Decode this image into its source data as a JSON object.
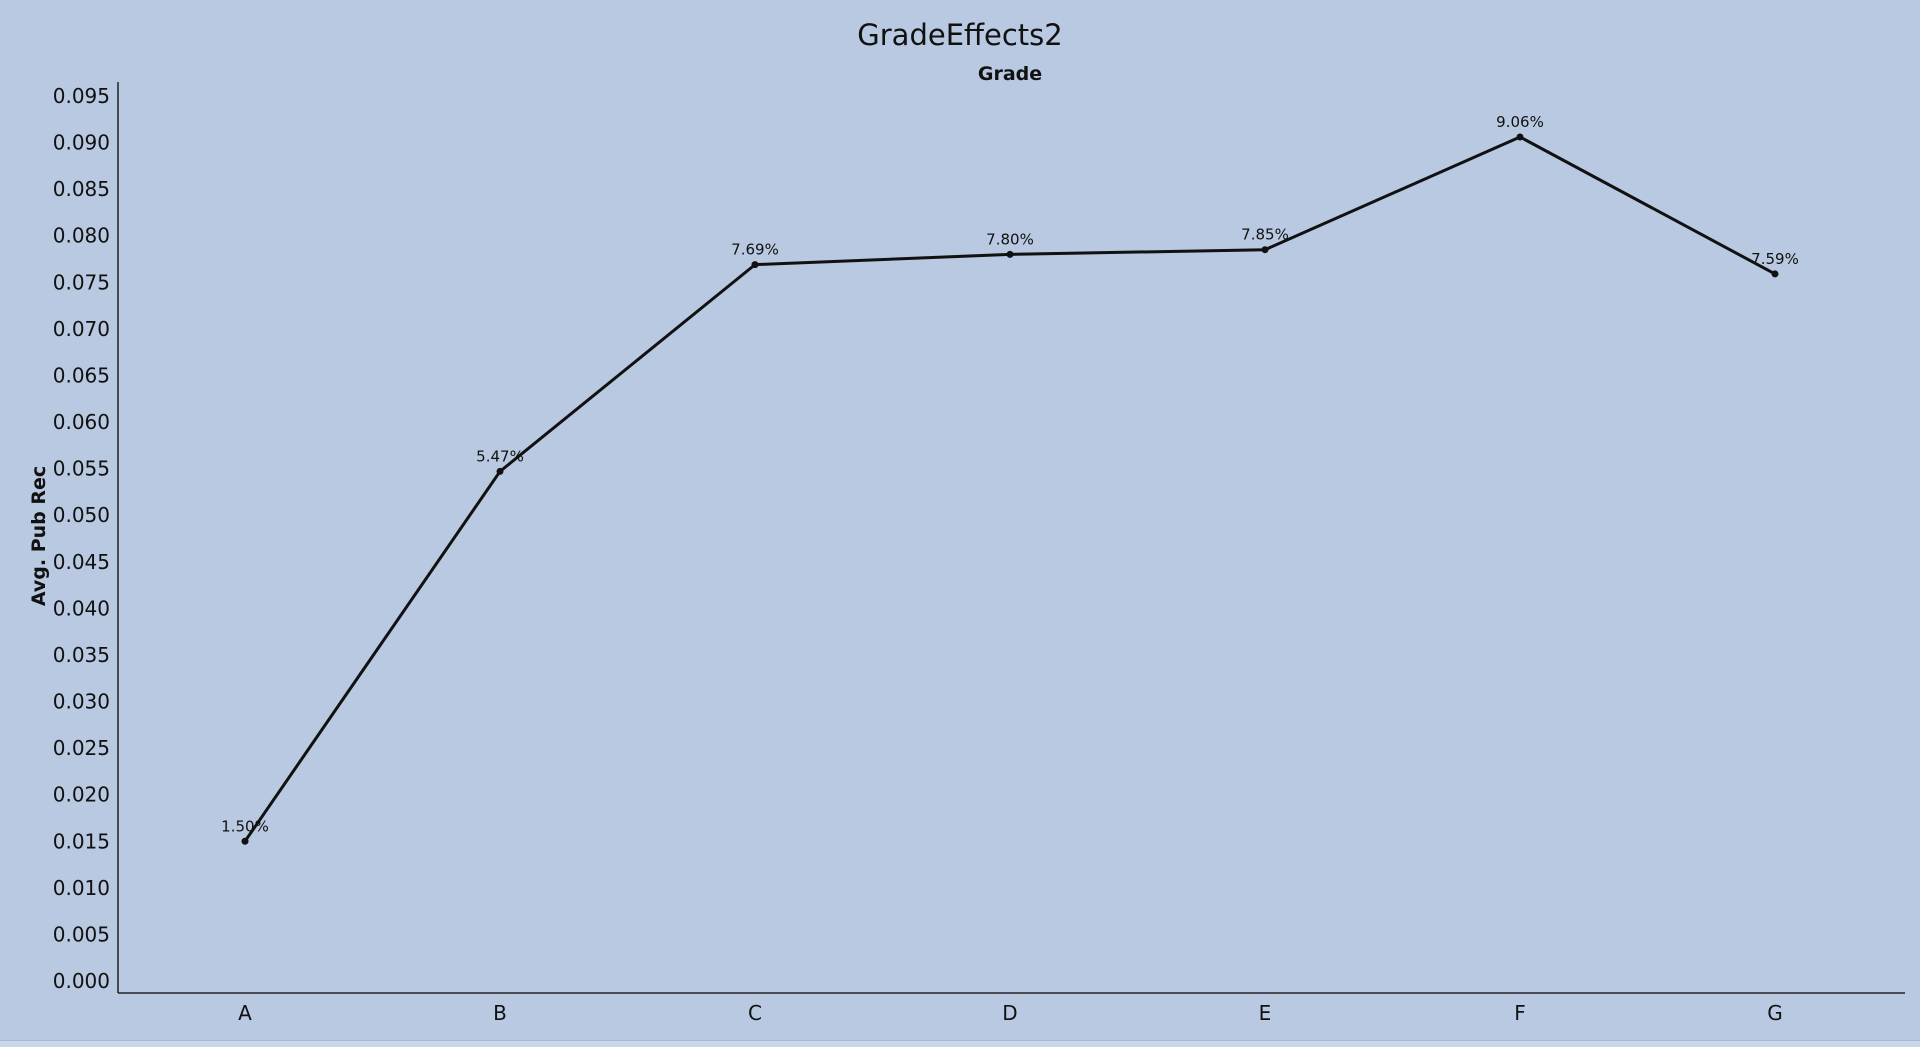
{
  "chart_data": {
    "type": "line",
    "title": "GradeEffects2",
    "subtitle": "Grade",
    "xlabel": "",
    "ylabel": "Avg. Pub Rec",
    "categories": [
      "A",
      "B",
      "C",
      "D",
      "E",
      "F",
      "G"
    ],
    "values": [
      0.015,
      0.0547,
      0.0769,
      0.078,
      0.0785,
      0.0906,
      0.0759
    ],
    "data_labels": [
      "1.50%",
      "5.47%",
      "7.69%",
      "7.80%",
      "7.85%",
      "9.06%",
      "7.59%"
    ],
    "ylim": [
      0.0,
      0.095
    ],
    "yticks": [
      "0.000",
      "0.005",
      "0.010",
      "0.015",
      "0.020",
      "0.025",
      "0.030",
      "0.035",
      "0.040",
      "0.045",
      "0.050",
      "0.055",
      "0.060",
      "0.065",
      "0.070",
      "0.075",
      "0.080",
      "0.085",
      "0.090",
      "0.095"
    ],
    "grid": false,
    "legend": "none",
    "colors": {
      "background": "#b8c9e1",
      "line": "#111111"
    }
  }
}
